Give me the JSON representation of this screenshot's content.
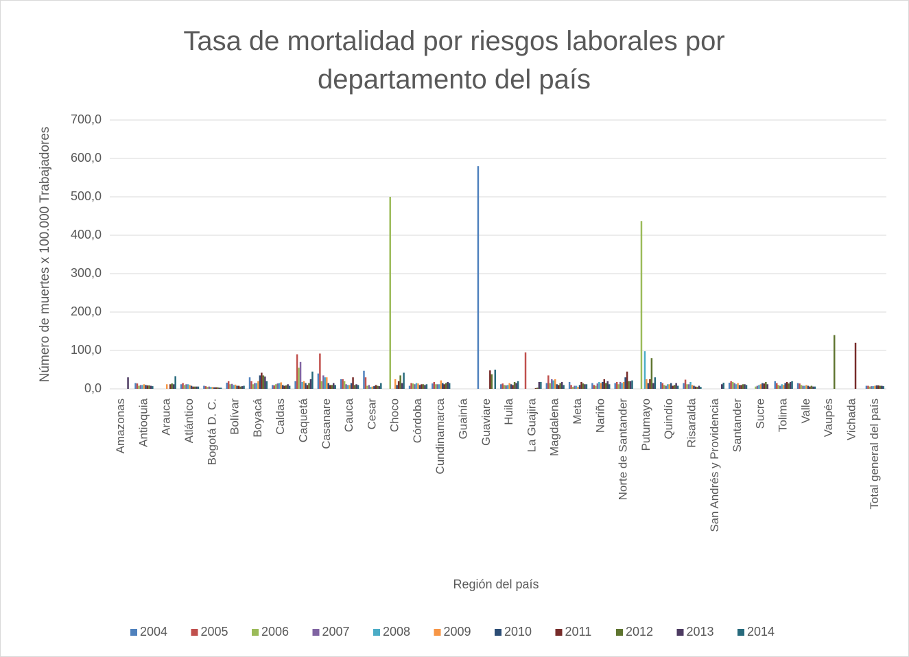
{
  "chart_data": {
    "type": "bar",
    "title": "Tasa de mortalidad por riesgos laborales por departamento del país",
    "x_label": "Región del país",
    "y_label": "Número de muertes x 100.000 Trabajadores",
    "categories": [
      "Amazonas",
      "Antioquia",
      "Arauca",
      "Atlántico",
      "Bogotá D. C.",
      "Bolívar",
      "Boyacá",
      "Caldas",
      "Caquetá",
      "Casanare",
      "Cauca",
      "Cesar",
      "Choco",
      "Córdoba",
      "Cundinamarca",
      "Guainía",
      "Guaviare",
      "Huila",
      "La Guajira",
      "Magdalena",
      "Meta",
      "Nariño",
      "Norte de Santander",
      "Putumayo",
      "Quindío",
      "Risaralda",
      "San Andrés y Providencia",
      "Santander",
      "Sucre",
      "Tolima",
      "Valle",
      "Vaupés",
      "Vichada",
      "Total general del país"
    ],
    "series": [
      {
        "name": "2004",
        "color": "#4f81bd",
        "values": [
          0,
          15,
          0,
          12,
          8,
          16,
          30,
          10,
          20,
          40,
          25,
          47,
          0,
          8,
          14,
          0,
          580,
          12,
          0,
          15,
          18,
          15,
          15,
          0,
          18,
          15,
          0,
          16,
          0,
          20,
          15,
          0,
          0,
          8
        ]
      },
      {
        "name": "2005",
        "color": "#c0504d",
        "values": [
          0,
          14,
          0,
          15,
          7,
          20,
          20,
          9,
          90,
          92,
          25,
          30,
          0,
          15,
          18,
          0,
          0,
          14,
          95,
          35,
          10,
          10,
          18,
          0,
          15,
          24,
          0,
          20,
          0,
          15,
          14,
          0,
          0,
          8
        ]
      },
      {
        "name": "2006",
        "color": "#9bbb59",
        "values": [
          0,
          8,
          0,
          10,
          5,
          12,
          12,
          12,
          55,
          20,
          20,
          8,
          500,
          14,
          12,
          0,
          0,
          10,
          0,
          15,
          5,
          8,
          12,
          437,
          10,
          12,
          0,
          18,
          6,
          10,
          10,
          0,
          0,
          6
        ]
      },
      {
        "name": "2007",
        "color": "#8064a2",
        "values": [
          0,
          10,
          0,
          12,
          6,
          13,
          15,
          14,
          70,
          35,
          12,
          10,
          0,
          12,
          12,
          0,
          0,
          9,
          0,
          25,
          8,
          14,
          18,
          0,
          8,
          12,
          0,
          15,
          8,
          8,
          8,
          0,
          0,
          7
        ]
      },
      {
        "name": "2008",
        "color": "#4bacc6",
        "values": [
          0,
          10,
          0,
          12,
          5,
          10,
          15,
          15,
          18,
          30,
          10,
          5,
          0,
          15,
          12,
          0,
          0,
          10,
          0,
          22,
          8,
          18,
          15,
          98,
          12,
          18,
          0,
          12,
          10,
          12,
          8,
          0,
          0,
          7
        ]
      },
      {
        "name": "2009",
        "color": "#f79646",
        "values": [
          0,
          12,
          12,
          10,
          5,
          11,
          20,
          17,
          20,
          30,
          10,
          6,
          25,
          14,
          22,
          0,
          0,
          15,
          0,
          25,
          5,
          15,
          18,
          25,
          12,
          10,
          0,
          15,
          12,
          10,
          10,
          0,
          0,
          8
        ]
      },
      {
        "name": "2010",
        "color": "#2c4d75",
        "values": [
          0,
          10,
          0,
          8,
          4,
          8,
          35,
          10,
          15,
          15,
          15,
          7,
          10,
          10,
          15,
          0,
          0,
          12,
          0,
          12,
          10,
          18,
          30,
          15,
          15,
          8,
          0,
          10,
          15,
          15,
          8,
          0,
          0,
          9
        ]
      },
      {
        "name": "2011",
        "color": "#772c2a",
        "values": [
          0,
          9,
          12,
          6,
          4,
          8,
          42,
          8,
          10,
          10,
          30,
          10,
          20,
          12,
          12,
          0,
          48,
          10,
          2,
          10,
          18,
          25,
          45,
          25,
          8,
          6,
          0,
          10,
          14,
          18,
          6,
          0,
          120,
          9
        ]
      },
      {
        "name": "2012",
        "color": "#5f7530",
        "values": [
          0,
          9,
          14,
          6,
          4,
          6,
          35,
          9,
          15,
          10,
          10,
          8,
          35,
          12,
          15,
          0,
          38,
          18,
          3,
          15,
          14,
          15,
          20,
          80,
          10,
          5,
          0,
          12,
          18,
          14,
          8,
          140,
          0,
          8
        ]
      },
      {
        "name": "2013",
        "color": "#4d3b62",
        "values": [
          30,
          8,
          12,
          6,
          3,
          7,
          32,
          12,
          25,
          15,
          12,
          7,
          15,
          10,
          18,
          0,
          0,
          15,
          18,
          18,
          12,
          20,
          20,
          15,
          15,
          8,
          12,
          12,
          12,
          18,
          6,
          0,
          0,
          8
        ]
      },
      {
        "name": "2014",
        "color": "#276a7c",
        "values": [
          0,
          7,
          33,
          6,
          3,
          8,
          20,
          8,
          45,
          10,
          10,
          15,
          42,
          12,
          15,
          0,
          50,
          20,
          18,
          10,
          12,
          12,
          22,
          30,
          8,
          5,
          16,
          10,
          0,
          20,
          6,
          0,
          0,
          7
        ]
      }
    ],
    "ylim": [
      0,
      700
    ],
    "yticks": [
      {
        "value": 0,
        "label": "0,0"
      },
      {
        "value": 100,
        "label": "100,0"
      },
      {
        "value": 200,
        "label": "200,0"
      },
      {
        "value": 300,
        "label": "300,0"
      },
      {
        "value": 400,
        "label": "400,0"
      },
      {
        "value": 500,
        "label": "500,0"
      },
      {
        "value": 600,
        "label": "600,0"
      },
      {
        "value": 700,
        "label": "700,0"
      }
    ],
    "grid": true,
    "legend": "bottom"
  }
}
